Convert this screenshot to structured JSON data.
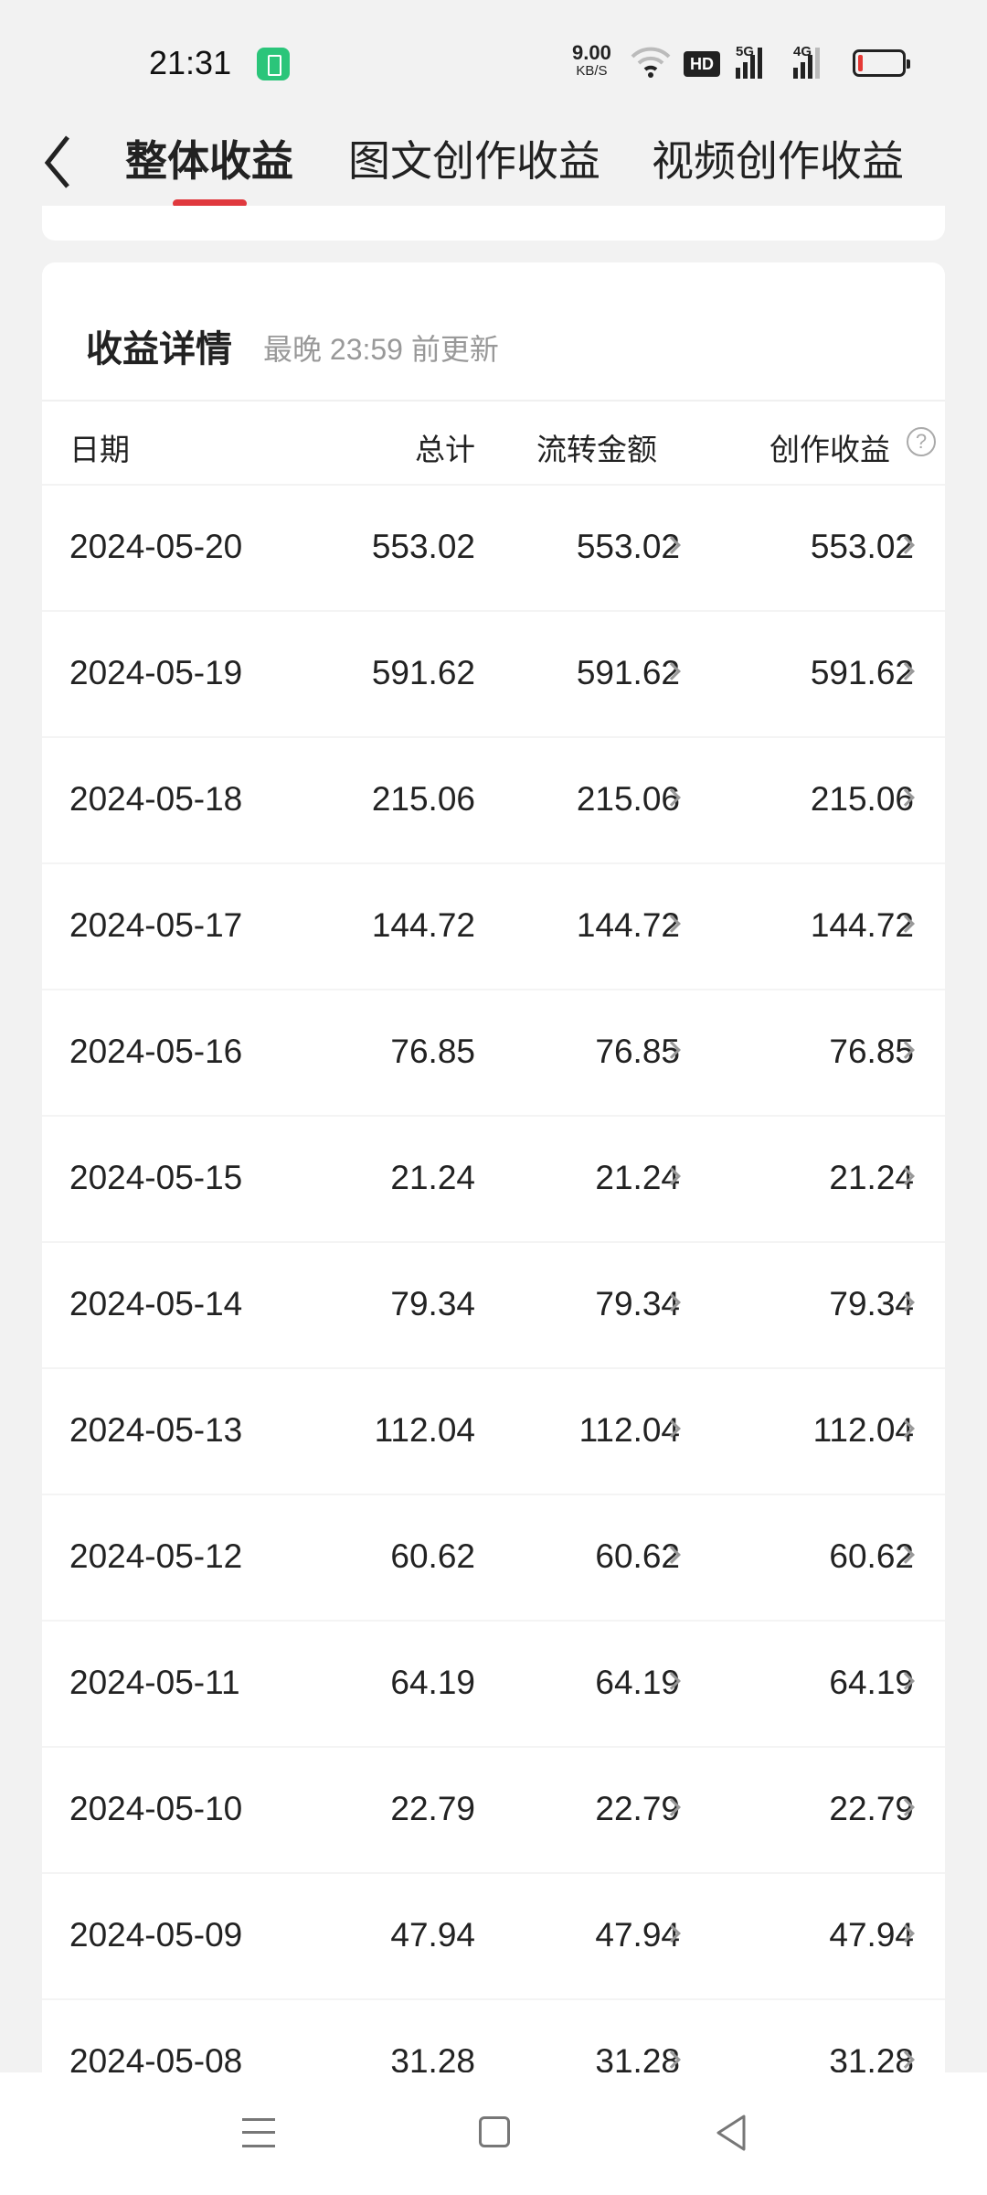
{
  "status_bar": {
    "time": "21:31",
    "net_speed": "9.00",
    "net_unit": "KB/S",
    "hd": "HD",
    "sig1": "5G",
    "sig2": "4G",
    "battery_level_pct": 10,
    "battery_color": "#e53935",
    "chip_color": "#2bc57a"
  },
  "header": {
    "tabs": [
      {
        "label": "整体收益",
        "active": true
      },
      {
        "label": "图文创作收益"
      },
      {
        "label": "视频创作收益"
      }
    ],
    "accent": "#e0393e"
  },
  "details": {
    "title": "收益详情",
    "subtitle": "最晚 23:59 前更新",
    "columns": [
      "日期",
      "总计",
      "流转金额",
      "创作收益"
    ],
    "help_icon": "?",
    "rows": [
      [
        "2024-05-20",
        "553.02",
        "553.02",
        "553.02"
      ],
      [
        "2024-05-19",
        "591.62",
        "591.62",
        "591.62"
      ],
      [
        "2024-05-18",
        "215.06",
        "215.06",
        "215.06"
      ],
      [
        "2024-05-17",
        "144.72",
        "144.72",
        "144.72"
      ],
      [
        "2024-05-16",
        "76.85",
        "76.85",
        "76.85"
      ],
      [
        "2024-05-15",
        "21.24",
        "21.24",
        "21.24"
      ],
      [
        "2024-05-14",
        "79.34",
        "79.34",
        "79.34"
      ],
      [
        "2024-05-13",
        "112.04",
        "112.04",
        "112.04"
      ],
      [
        "2024-05-12",
        "60.62",
        "60.62",
        "60.62"
      ],
      [
        "2024-05-11",
        "64.19",
        "64.19",
        "64.19"
      ],
      [
        "2024-05-10",
        "22.79",
        "22.79",
        "22.79"
      ],
      [
        "2024-05-09",
        "47.94",
        "47.94",
        "47.94"
      ],
      [
        "2024-05-08",
        "31.28",
        "31.28",
        "31.28"
      ]
    ]
  }
}
